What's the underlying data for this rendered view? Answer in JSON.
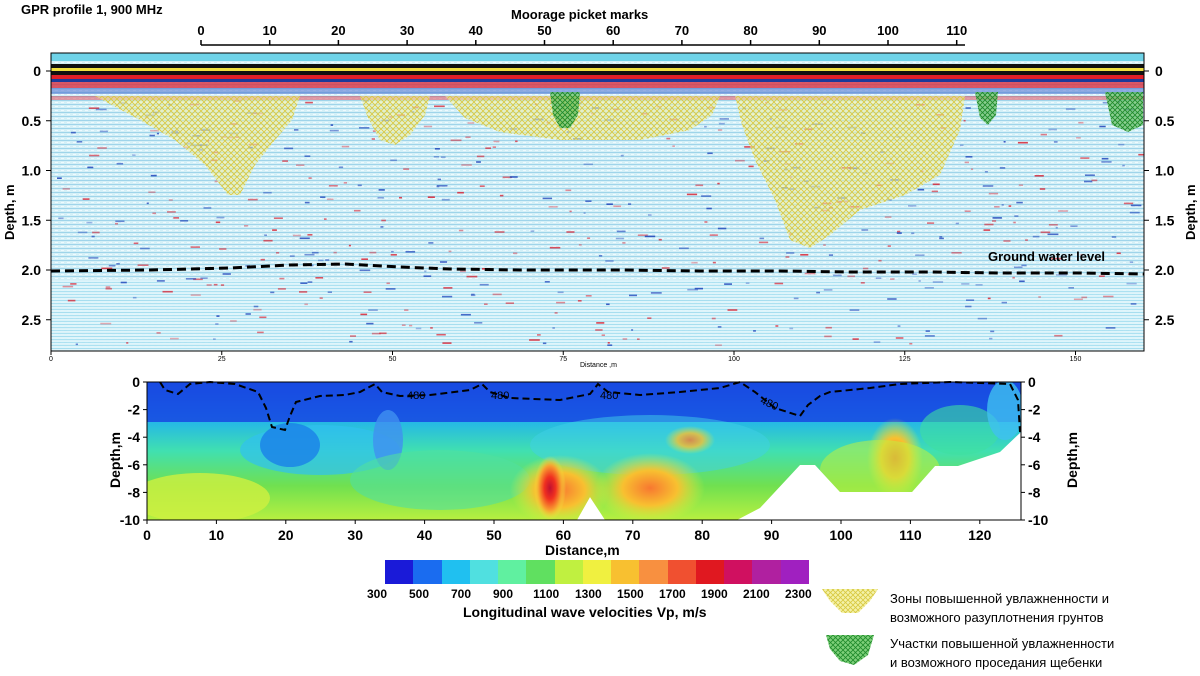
{
  "colors": {
    "gpr_background": "#cfeef5",
    "gpr_red": "#e0202a",
    "gpr_blue": "#1a4fc0",
    "wet_zone_yellow": "#e8e890",
    "gravel_zone_green": "#48b048",
    "dashed_line": "#000000"
  },
  "gpr": {
    "title": "GPR profile 1,  900 MHz",
    "top_axis_title": "Moorage picket marks",
    "left_axis_label": "Depth, m",
    "right_axis_label": "Depth, m",
    "bottom_axis_label": "Distance ,m",
    "groundwater_label": "Ground water level"
  },
  "vp_section": {
    "y_label_left": "Depth,m",
    "y_label_right": "Depth,m",
    "x_label": "Distance,m"
  },
  "colorbar": {
    "label": "Longitudinal wave velocities Vp, m/s",
    "colors": [
      "#1a1ad8",
      "#1a6cf0",
      "#20c0f0",
      "#50e0e0",
      "#60f0a0",
      "#60e060",
      "#c0f040",
      "#f0f040",
      "#f8c030",
      "#f89040",
      "#f05030",
      "#e01820",
      "#d01060",
      "#b020a0",
      "#a020c0"
    ]
  },
  "legend": [
    {
      "icon": "yellow-hatch-icon",
      "line1": "Зоны повышенной увлажненности и",
      "line2": "возможного разуплотнения грунтов"
    },
    {
      "icon": "green-hatch-icon",
      "line1": "Участки повышенной увлажненности",
      "line2": "и возможного проседания щебенки"
    }
  ],
  "chart_data": [
    {
      "type": "heatmap",
      "title": "GPR profile 1,  900 MHz",
      "x_top_ticks": [
        0,
        10,
        20,
        30,
        40,
        50,
        60,
        70,
        80,
        90,
        100,
        110
      ],
      "x_top_label": "Moorage picket marks",
      "x_bottom_ticks": [
        0,
        25,
        50,
        75,
        100,
        125,
        150
      ],
      "x_bottom_label": "Distance ,m",
      "xlim": [
        0,
        160
      ],
      "ylabel": "Depth, m",
      "y_ticks": [
        "0",
        "0.5",
        "1.0",
        "1.5",
        "2.0",
        "2.5"
      ],
      "ylim": [
        0,
        2.8
      ],
      "annotations": [
        "Ground water level"
      ],
      "groundwater_level": {
        "x": [
          0,
          10,
          20,
          30,
          35,
          40,
          45,
          50,
          60,
          70,
          80,
          90,
          100,
          110,
          120,
          130,
          140,
          150,
          160
        ],
        "depth": [
          2.02,
          2.02,
          2.0,
          1.97,
          1.96,
          1.97,
          2.0,
          2.02,
          2.02,
          2.02,
          2.02,
          2.02,
          2.02,
          2.03,
          2.03,
          2.03,
          2.04,
          2.04,
          2.04
        ]
      },
      "wet_zones": [
        {
          "x": [
            3,
            35
          ],
          "max_depth": 1.3
        },
        {
          "x": [
            46,
            56
          ],
          "max_depth": 0.75
        },
        {
          "x": [
            58,
            103
          ],
          "max_depth": 0.55
        },
        {
          "x": [
            105,
            135
          ],
          "max_depth": 1.9
        }
      ],
      "gravel_zones": [
        {
          "x": [
            73,
            77
          ],
          "max_depth": 0.6
        },
        {
          "x": [
            137,
            140
          ],
          "max_depth": 0.5
        },
        {
          "x": [
            153,
            158
          ],
          "max_depth": 0.6
        }
      ]
    },
    {
      "type": "heatmap",
      "xlabel": "Distance,m",
      "ylabel": "Depth,m",
      "x_ticks": [
        0,
        10,
        20,
        30,
        40,
        50,
        60,
        70,
        80,
        90,
        100,
        110,
        120
      ],
      "y_ticks": [
        "0",
        "-2",
        "-4",
        "-6",
        "-8",
        "-10"
      ],
      "xlim": [
        0,
        126
      ],
      "ylim": [
        -10,
        0
      ],
      "contour_label": "480",
      "contour_label_count": 4
    }
  ],
  "colorbar_ticks": [
    "300",
    "500",
    "700",
    "900",
    "1100",
    "1300",
    "1500",
    "1700",
    "1900",
    "2100",
    "2300"
  ]
}
